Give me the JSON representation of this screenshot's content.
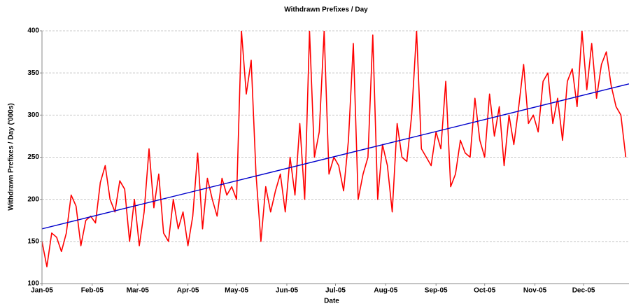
{
  "chart_data": {
    "type": "line",
    "title": "Withdrawn Prefixes / Day",
    "xlabel": "Date",
    "ylabel": "Withdrawn Prefixes / Day ('000s)",
    "xlim": [
      0,
      362
    ],
    "ylim": [
      100,
      400
    ],
    "yticks": [
      100,
      150,
      200,
      250,
      300,
      350,
      400
    ],
    "xticks": [
      {
        "value": 0,
        "label": "Jan-05"
      },
      {
        "value": 31,
        "label": "Feb-05"
      },
      {
        "value": 59,
        "label": "Mar-05"
      },
      {
        "value": 90,
        "label": "Apr-05"
      },
      {
        "value": 120,
        "label": "May-05"
      },
      {
        "value": 151,
        "label": "Jun-05"
      },
      {
        "value": 181,
        "label": "Jul-05"
      },
      {
        "value": 212,
        "label": "Aug-05"
      },
      {
        "value": 243,
        "label": "Sep-05"
      },
      {
        "value": 273,
        "label": "Oct-05"
      },
      {
        "value": 304,
        "label": "Nov-05"
      },
      {
        "value": 334,
        "label": "Dec-05"
      }
    ],
    "grid": true,
    "series": [
      {
        "color": "#ff0000",
        "x": [
          0,
          3,
          6,
          9,
          12,
          15,
          18,
          21,
          24,
          27,
          30,
          33,
          36,
          39,
          42,
          45,
          48,
          51,
          54,
          57,
          60,
          63,
          66,
          69,
          72,
          75,
          78,
          81,
          84,
          87,
          90,
          93,
          96,
          99,
          102,
          105,
          108,
          111,
          114,
          117,
          120,
          123,
          126,
          129,
          132,
          135,
          138,
          141,
          144,
          147,
          150,
          153,
          156,
          159,
          162,
          165,
          168,
          171,
          174,
          177,
          180,
          183,
          186,
          189,
          192,
          195,
          198,
          201,
          204,
          207,
          210,
          213,
          216,
          219,
          222,
          225,
          228,
          231,
          234,
          237,
          240,
          243,
          246,
          249,
          252,
          255,
          258,
          261,
          264,
          267,
          270,
          273,
          276,
          279,
          282,
          285,
          288,
          291,
          294,
          297,
          300,
          303,
          306,
          309,
          312,
          315,
          318,
          321,
          324,
          327,
          330,
          333,
          336,
          339,
          342,
          345,
          348,
          351,
          354,
          357,
          360
        ],
        "values": [
          150,
          120,
          160,
          155,
          138,
          160,
          205,
          192,
          145,
          175,
          180,
          172,
          220,
          240,
          200,
          185,
          222,
          212,
          150,
          200,
          145,
          185,
          260,
          190,
          230,
          160,
          150,
          200,
          165,
          185,
          145,
          180,
          255,
          165,
          225,
          200,
          180,
          225,
          205,
          215,
          200,
          400,
          325,
          365,
          230,
          150,
          215,
          185,
          210,
          230,
          185,
          250,
          205,
          290,
          200,
          400,
          250,
          280,
          400,
          230,
          250,
          240,
          210,
          270,
          385,
          200,
          230,
          250,
          395,
          200,
          265,
          240,
          185,
          290,
          250,
          245,
          300,
          400,
          260,
          250,
          240,
          280,
          260,
          340,
          215,
          230,
          270,
          255,
          250,
          320,
          270,
          250,
          325,
          275,
          310,
          240,
          300,
          265,
          310,
          360,
          290,
          300,
          280,
          340,
          350,
          290,
          320,
          270,
          340,
          355,
          310,
          400,
          330,
          385,
          320,
          360,
          375,
          335,
          310,
          300,
          250
        ]
      },
      {
        "color": "#0000cc",
        "x": [
          0,
          362
        ],
        "values": [
          165,
          337
        ]
      }
    ]
  }
}
